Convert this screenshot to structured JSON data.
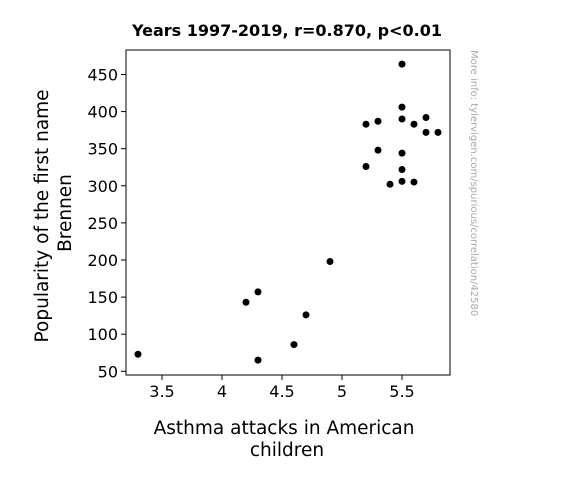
{
  "chart_data": {
    "type": "scatter",
    "title": "Years 1997-2019, r=0.870, p<0.01",
    "xlabel_lines": [
      "Asthma attacks in American",
      "children"
    ],
    "ylabel_lines": [
      "Popularity of the first name",
      "Brennen"
    ],
    "side_note": "More info: tylervigen.com/spurious/correlation/42580",
    "xlim": [
      3.2,
      5.9
    ],
    "ylim": [
      45,
      483
    ],
    "x_ticks": [
      3.5,
      4,
      4.5,
      5,
      5.5
    ],
    "x_tick_labels": [
      "3.5",
      "4",
      "4.5",
      "5",
      "5.5"
    ],
    "y_ticks": [
      50,
      100,
      150,
      200,
      250,
      300,
      350,
      400,
      450
    ],
    "y_tick_labels": [
      "50",
      "100",
      "150",
      "200",
      "250",
      "300",
      "350",
      "400",
      "450"
    ],
    "grid": false,
    "marker_color": "#000000",
    "points": [
      {
        "x": 3.3,
        "y": 73
      },
      {
        "x": 4.2,
        "y": 143
      },
      {
        "x": 4.3,
        "y": 157
      },
      {
        "x": 4.3,
        "y": 65
      },
      {
        "x": 4.6,
        "y": 86
      },
      {
        "x": 4.7,
        "y": 126
      },
      {
        "x": 4.9,
        "y": 198
      },
      {
        "x": 5.2,
        "y": 383
      },
      {
        "x": 5.2,
        "y": 326
      },
      {
        "x": 5.3,
        "y": 387
      },
      {
        "x": 5.3,
        "y": 348
      },
      {
        "x": 5.4,
        "y": 302
      },
      {
        "x": 5.5,
        "y": 464
      },
      {
        "x": 5.5,
        "y": 406
      },
      {
        "x": 5.5,
        "y": 390
      },
      {
        "x": 5.5,
        "y": 344
      },
      {
        "x": 5.5,
        "y": 322
      },
      {
        "x": 5.5,
        "y": 306
      },
      {
        "x": 5.6,
        "y": 383
      },
      {
        "x": 5.6,
        "y": 305
      },
      {
        "x": 5.7,
        "y": 392
      },
      {
        "x": 5.7,
        "y": 372
      },
      {
        "x": 5.8,
        "y": 372
      }
    ]
  }
}
